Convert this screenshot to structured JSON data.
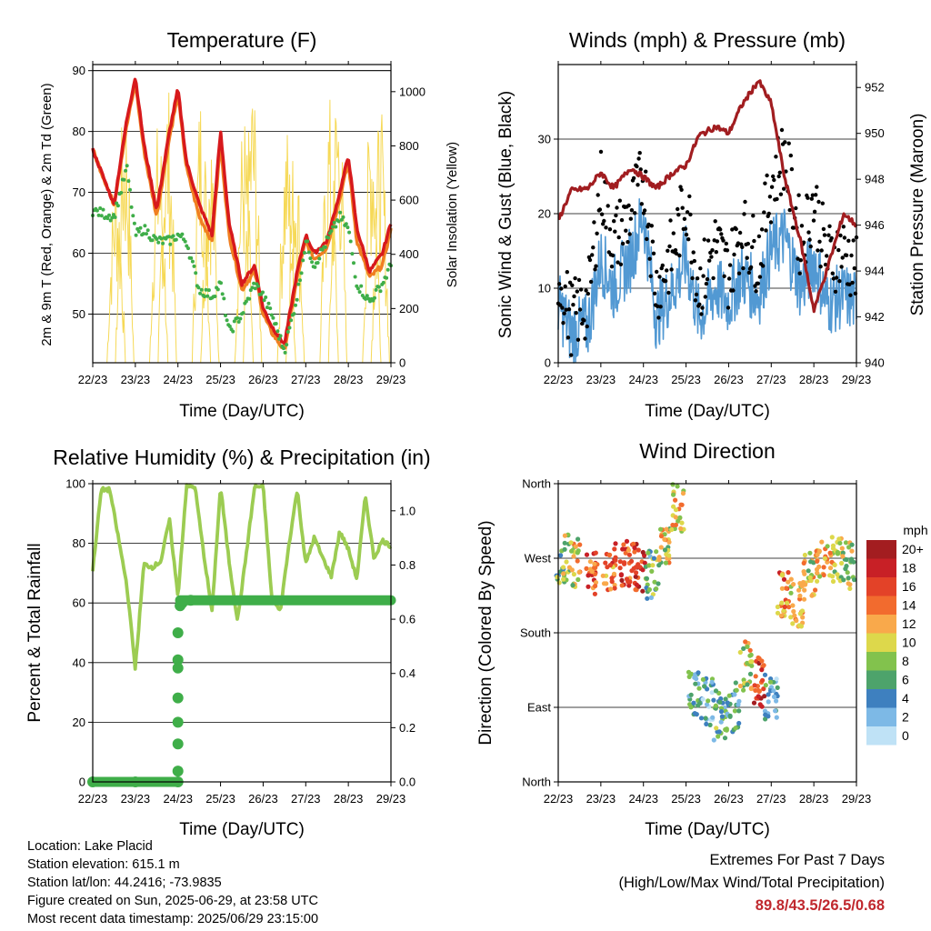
{
  "colors": {
    "temp_2m": "#d7191c",
    "temp_9m": "#f07f21",
    "dewpoint": "#3fae49",
    "solar": "#f6d957",
    "wind": "#5299d3",
    "gust": "#000000",
    "pressure": "#a11d20",
    "rh": "#9ccc52",
    "precip": "#3fae49",
    "extremes": "#c0282e"
  },
  "speed_colorbar": {
    "unit": "mph",
    "labels": [
      "20+",
      "18",
      "16",
      "14",
      "12",
      "10",
      "8",
      "6",
      "4",
      "2",
      "0"
    ],
    "colors": [
      "#a31d20",
      "#c82026",
      "#e34228",
      "#f26b2e",
      "#f9a94b",
      "#ddd84b",
      "#82c24d",
      "#4da36b",
      "#3e80bf",
      "#7db9e6",
      "#bfe2f6"
    ]
  },
  "chart_data": [
    {
      "id": "temperature",
      "type": "line",
      "title": "Temperature (F)",
      "xlabel": "Time (Day/UTC)",
      "ylabel": "2m & 9m T (Red, Orange) & 2m Td (Green)",
      "y2label": "Solar Insolation (Yellow)",
      "x_ticks": [
        "22/23",
        "23/23",
        "24/23",
        "25/23",
        "26/23",
        "27/23",
        "28/23",
        "29/23"
      ],
      "ylim": [
        42,
        91
      ],
      "y_ticks": [
        50,
        60,
        70,
        80,
        90
      ],
      "y2lim": [
        0,
        1100
      ],
      "y2_ticks": [
        0,
        200,
        400,
        600,
        800,
        1000
      ],
      "x_days": [
        0,
        0.5,
        0.8,
        1.0,
        1.2,
        1.5,
        1.8,
        2.0,
        2.2,
        2.5,
        2.8,
        3.0,
        3.2,
        3.5,
        3.8,
        4.0,
        4.2,
        4.5,
        4.8,
        5.0,
        5.2,
        5.5,
        5.8,
        6.0,
        6.2,
        6.5,
        6.8,
        7.0
      ],
      "series": [
        {
          "key": "t2m",
          "values": [
            77,
            68,
            82,
            89,
            78,
            67,
            80,
            87,
            75,
            68,
            63,
            80,
            65,
            55,
            58,
            51,
            48,
            45,
            57,
            63,
            60,
            62,
            70,
            76,
            64,
            57,
            60,
            65
          ]
        },
        {
          "key": "t9m",
          "values": [
            77,
            68,
            81,
            88,
            77,
            66,
            79,
            86,
            74,
            66,
            62,
            78,
            63,
            54,
            57,
            50,
            47,
            44,
            56,
            62,
            59,
            61,
            69,
            75,
            62,
            56,
            58,
            64
          ]
        },
        {
          "key": "td",
          "values": [
            67,
            66,
            74,
            63,
            64,
            62,
            62,
            63,
            62,
            54,
            53,
            55,
            47,
            50,
            55,
            53,
            50,
            44,
            53,
            62,
            58,
            62,
            66,
            64,
            55,
            52,
            55,
            58
          ]
        }
      ],
      "solar_peaks": [
        760,
        1010,
        920,
        1060,
        1050,
        920,
        940,
        1090,
        900,
        860,
        1000,
        1100,
        1040,
        950
      ]
    },
    {
      "id": "winds",
      "type": "line",
      "title": "Winds (mph) & Pressure (mb)",
      "xlabel": "Time (Day/UTC)",
      "ylabel": "Sonic Wind & Gust (Blue, Black)",
      "y2label": "Station Pressure (Maroon)",
      "x_ticks": [
        "22/23",
        "23/23",
        "24/23",
        "25/23",
        "26/23",
        "27/23",
        "28/23",
        "29/23"
      ],
      "ylim": [
        0,
        40
      ],
      "y_ticks": [
        0,
        10,
        20,
        30
      ],
      "y2lim": [
        940,
        953
      ],
      "y2_ticks": [
        940,
        942,
        944,
        946,
        948,
        950,
        952
      ],
      "x_days": [
        0,
        0.3,
        0.7,
        1.0,
        1.3,
        1.7,
        2.0,
        2.3,
        2.7,
        3.0,
        3.3,
        3.7,
        4.0,
        4.3,
        4.7,
        5.0,
        5.3,
        5.7,
        6.0,
        6.3,
        6.7,
        7.0
      ],
      "series": [
        {
          "key": "wind",
          "values": [
            8,
            4,
            5,
            14,
            10,
            14,
            20,
            6,
            10,
            14,
            6,
            10,
            8,
            12,
            9,
            15,
            17,
            10,
            14,
            8,
            9,
            8
          ]
        },
        {
          "key": "gust",
          "values": [
            12,
            6,
            8,
            24,
            16,
            20,
            25,
            10,
            15,
            22,
            10,
            16,
            12,
            18,
            14,
            24,
            28,
            16,
            22,
            14,
            15,
            12
          ]
        },
        {
          "key": "pressure",
          "values": [
            946.2,
            947.5,
            947.6,
            948.3,
            947.6,
            948.5,
            948.1,
            947.6,
            948.3,
            948.6,
            949.9,
            950.3,
            950.0,
            951.2,
            952.3,
            951.3,
            948.2,
            945.2,
            942.3,
            944.0,
            946.5,
            946.0
          ]
        }
      ]
    },
    {
      "id": "humidity",
      "type": "line",
      "title": "Relative Humidity (%) & Precipitation (in)",
      "xlabel": "Time (Day/UTC)",
      "ylabel": "Percent & Total Rainfall",
      "x_ticks": [
        "22/23",
        "23/23",
        "24/23",
        "25/23",
        "26/23",
        "27/23",
        "28/23",
        "29/23"
      ],
      "ylim": [
        0,
        100
      ],
      "y_ticks": [
        0,
        20,
        40,
        60,
        80,
        100
      ],
      "y2lim": [
        0,
        1.1
      ],
      "y2_ticks": [
        "0.0",
        "0.2",
        "0.4",
        "0.6",
        "0.8",
        "1.0"
      ],
      "x_days": [
        0,
        0.2,
        0.4,
        0.6,
        0.8,
        1.0,
        1.2,
        1.4,
        1.6,
        1.8,
        2.0,
        2.2,
        2.4,
        2.6,
        2.8,
        3.0,
        3.2,
        3.4,
        3.6,
        3.8,
        4.0,
        4.2,
        4.4,
        4.6,
        4.8,
        5.0,
        5.2,
        5.4,
        5.6,
        5.8,
        6.0,
        6.2,
        6.4,
        6.6,
        6.8,
        7.0
      ],
      "series": [
        {
          "key": "rh",
          "values": [
            71,
            98,
            98,
            82,
            66,
            38,
            73,
            72,
            74,
            88,
            62,
            99,
            99,
            77,
            57,
            99,
            74,
            54,
            76,
            99,
            99,
            62,
            57,
            79,
            98,
            73,
            82,
            75,
            69,
            84,
            78,
            68,
            96,
            75,
            81,
            79
          ]
        }
      ],
      "precip": {
        "x_days": [
          0,
          1.0,
          2.0,
          2.0,
          2.0,
          2.0,
          2.0,
          2.0,
          2.0,
          2.0,
          2.05,
          2.1,
          2.3,
          7.0
        ],
        "values": [
          0,
          0,
          0,
          0.04,
          0.14,
          0.22,
          0.31,
          0.42,
          0.45,
          0.55,
          0.65,
          0.66,
          0.67,
          0.67
        ]
      }
    },
    {
      "id": "direction",
      "type": "scatter",
      "title": "Wind Direction",
      "xlabel": "Time (Day/UTC)",
      "ylabel": "Direction (Colored By Speed)",
      "x_ticks": [
        "22/23",
        "23/23",
        "24/23",
        "25/23",
        "26/23",
        "27/23",
        "28/23",
        "29/23"
      ],
      "y_ticks": [
        "North",
        "East",
        "South",
        "West",
        "North"
      ],
      "ylim": [
        0,
        360
      ],
      "clusters": [
        {
          "x": 0.1,
          "dir": 270,
          "spd": 8
        },
        {
          "x": 0.4,
          "dir": 265,
          "spd": 10
        },
        {
          "x": 0.8,
          "dir": 255,
          "spd": 15
        },
        {
          "x": 1.2,
          "dir": 260,
          "spd": 14
        },
        {
          "x": 1.6,
          "dir": 262,
          "spd": 16
        },
        {
          "x": 1.9,
          "dir": 258,
          "spd": 17
        },
        {
          "x": 2.2,
          "dir": 250,
          "spd": 6
        },
        {
          "x": 2.5,
          "dir": 290,
          "spd": 10
        },
        {
          "x": 2.8,
          "dir": 330,
          "spd": 11
        },
        {
          "x": 3.2,
          "dir": 110,
          "spd": 5
        },
        {
          "x": 3.5,
          "dir": 95,
          "spd": 4
        },
        {
          "x": 3.8,
          "dir": 80,
          "spd": 6
        },
        {
          "x": 4.1,
          "dir": 90,
          "spd": 5
        },
        {
          "x": 4.4,
          "dir": 140,
          "spd": 10
        },
        {
          "x": 4.7,
          "dir": 120,
          "spd": 16
        },
        {
          "x": 5.0,
          "dir": 100,
          "spd": 4
        },
        {
          "x": 5.3,
          "dir": 230,
          "spd": 14
        },
        {
          "x": 5.6,
          "dir": 215,
          "spd": 12
        },
        {
          "x": 5.9,
          "dir": 250,
          "spd": 10
        },
        {
          "x": 6.2,
          "dir": 268,
          "spd": 11
        },
        {
          "x": 6.5,
          "dir": 272,
          "spd": 10
        },
        {
          "x": 6.8,
          "dir": 262,
          "spd": 9
        }
      ]
    }
  ],
  "footer": {
    "location": "Location: Lake Placid",
    "elevation": "Station elevation: 615.1 m",
    "latlon": "Station lat/lon: 44.2416; -73.9835",
    "created": "Figure created on Sun, 2025-06-29, at 23:58 UTC",
    "recent": "Most recent data timestamp: 2025/06/29 23:15:00"
  },
  "extremes": {
    "title": "Extremes For Past 7 Days",
    "subtitle": "(High/Low/Max Wind/Total Precipitation)",
    "values": "89.8/43.5/26.5/0.68"
  }
}
